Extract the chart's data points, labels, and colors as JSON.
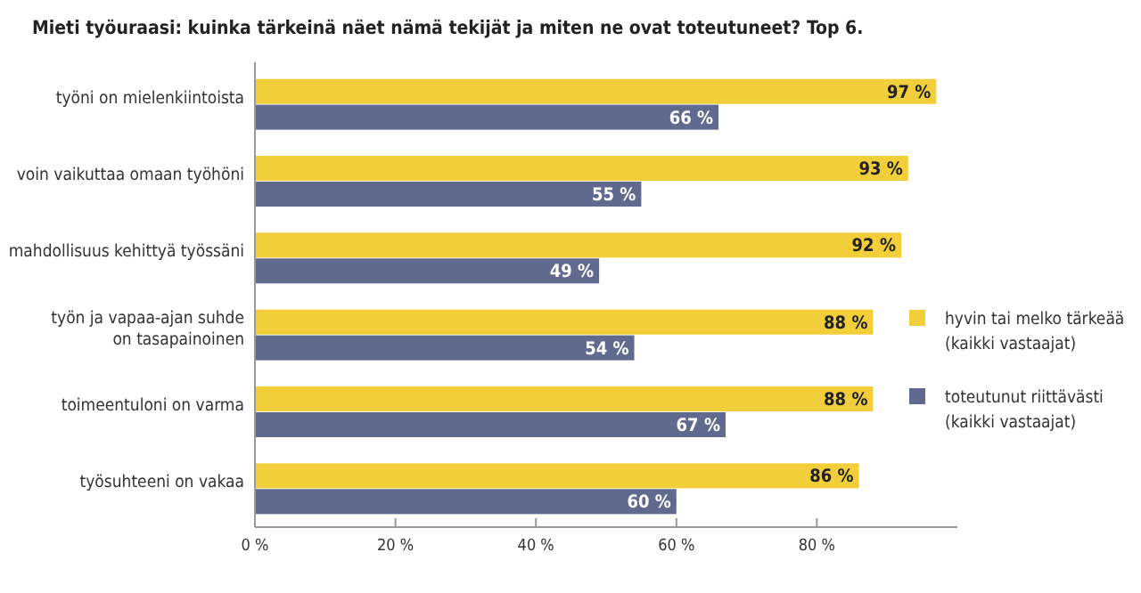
{
  "chart_data": {
    "type": "bar",
    "orientation": "horizontal",
    "title": "Mieti työuraasi: kuinka tärkeinä näet nämä tekijät ja miten ne ovat toteutuneet? Top 6.",
    "categories": [
      "työni on mielenkiintoista",
      "voin vaikuttaa omaan työhöni",
      "mahdollisuus kehittyä työssäni",
      "työn ja vapaa-ajan suhde\non tasapainoinen",
      "toimeentuloni on varma",
      "työsuhteeni on vakaa"
    ],
    "series": [
      {
        "name": "hyvin tai melko tärkeää\n(kaikki vastaajat)",
        "color": "#f2cf3a",
        "values": [
          97,
          93,
          92,
          88,
          88,
          86
        ],
        "value_labels": [
          "97 %",
          "93 %",
          "92 %",
          "88 %",
          "88 %",
          "86 %"
        ]
      },
      {
        "name": "toteutunut riittävästi\n(kaikki vastaajat)",
        "color": "#5f6a8e",
        "values": [
          66,
          55,
          49,
          54,
          67,
          60
        ],
        "value_labels": [
          "66 %",
          "55 %",
          "49 %",
          "54 %",
          "67 %",
          "60 %"
        ]
      }
    ],
    "xlim": [
      0,
      100
    ],
    "xticks": [
      {
        "value": 0,
        "label": "0 %"
      },
      {
        "value": 20,
        "label": "20 %"
      },
      {
        "value": 40,
        "label": "40 %"
      },
      {
        "value": 60,
        "label": "60 %"
      },
      {
        "value": 80,
        "label": "80 %"
      }
    ],
    "grid": false,
    "legend": "right"
  }
}
